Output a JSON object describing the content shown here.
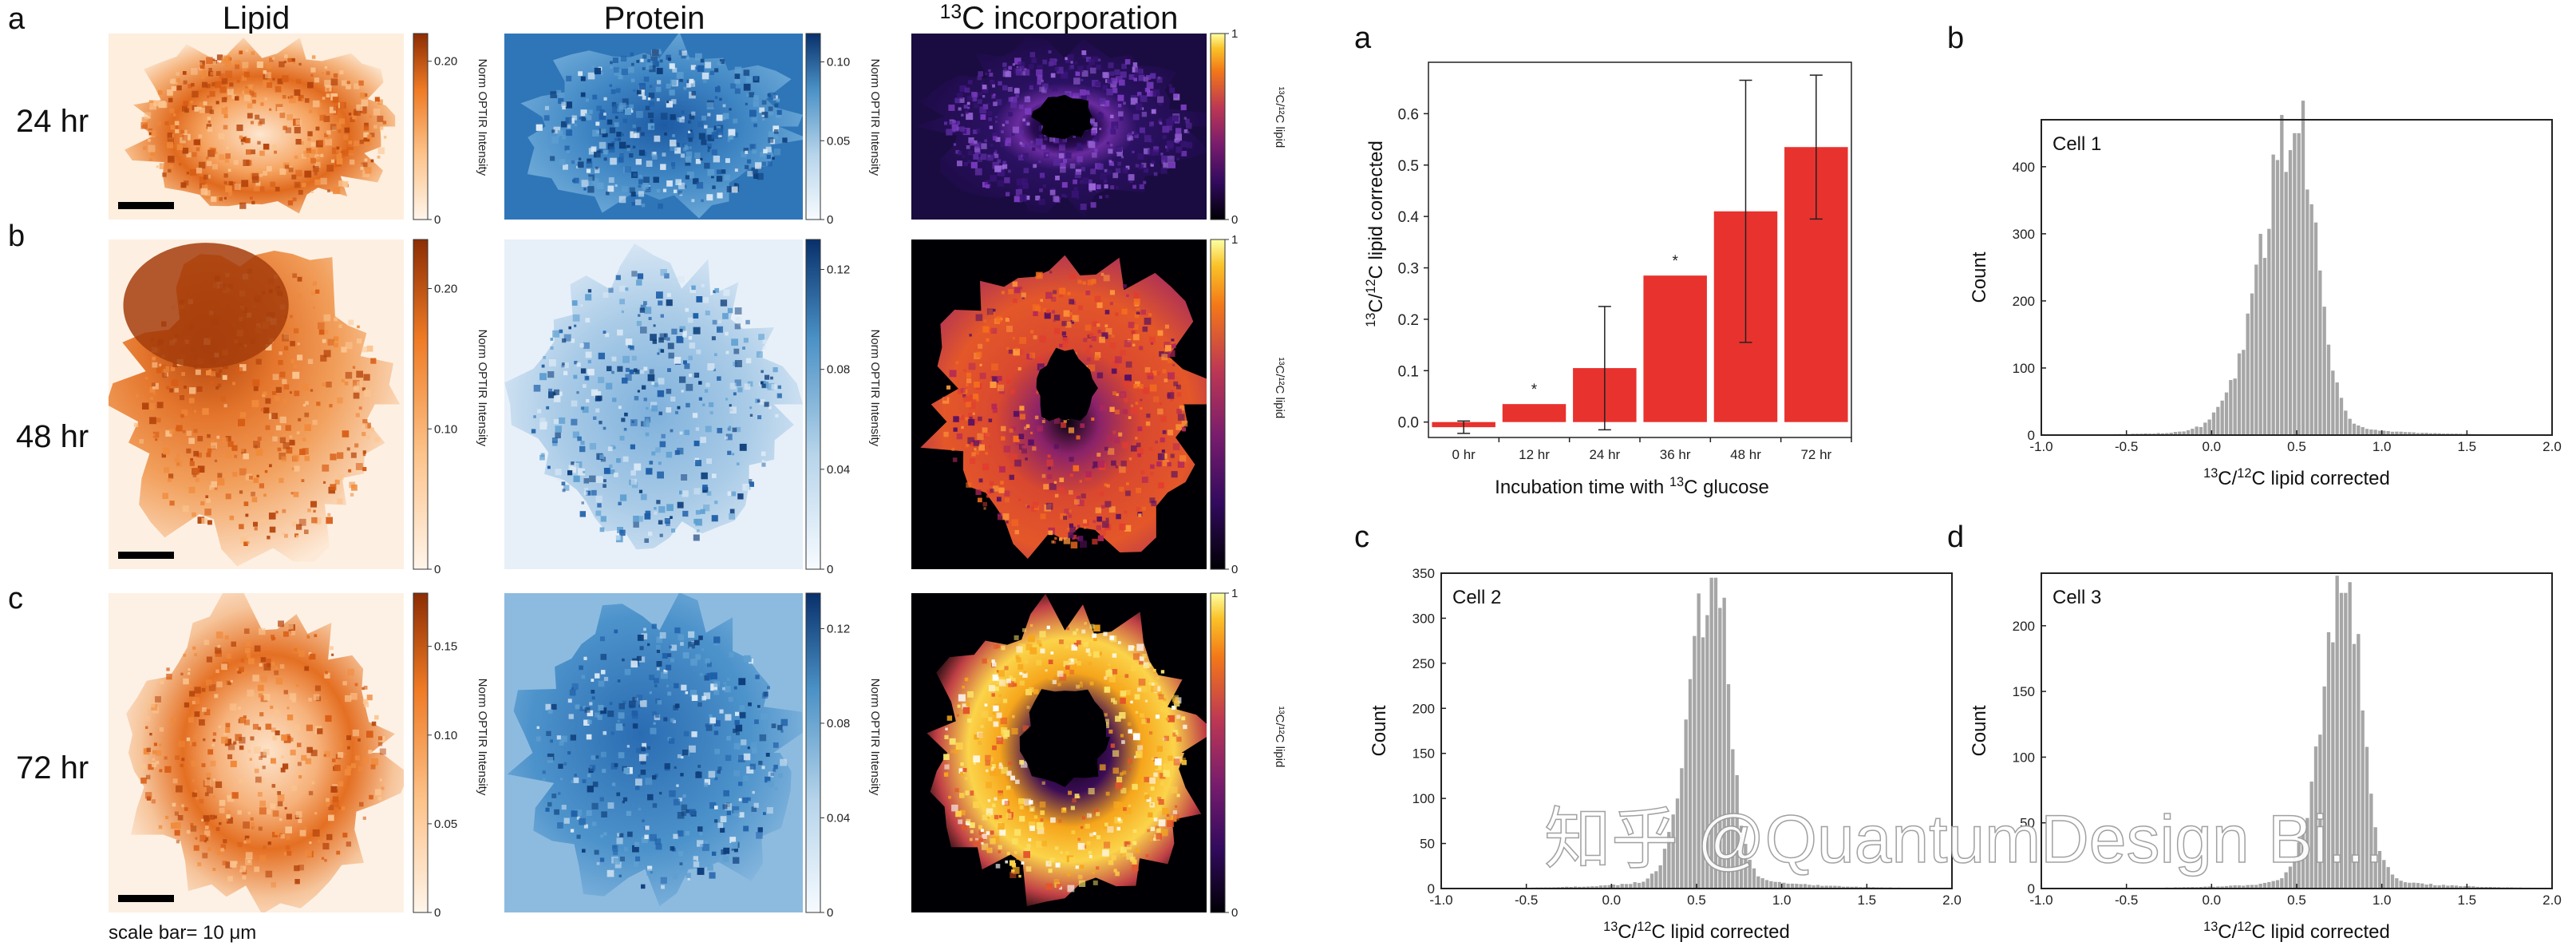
{
  "figure_left": {
    "column_titles": {
      "lipid": "Lipid",
      "protein": "Protein",
      "c13_prefix": "13",
      "c13_text": "C incorporation"
    },
    "panel_letters": [
      "a",
      "b",
      "c"
    ],
    "row_labels": [
      "24 hr",
      "48 hr",
      "72 hr"
    ],
    "scale_bar_prefix": "scale bar= 10 ",
    "scale_bar_unit": "μm",
    "colorbar_label_optir": "Norm OPTIR Intensity",
    "colorbar_label_c13": "¹³C/¹²C lipid",
    "colorbars": {
      "row0": {
        "lipid": {
          "ticks": [
            {
              "v": 0,
              "t": "0"
            },
            {
              "v": 0.2,
              "t": "0.20"
            }
          ],
          "max": 0.235,
          "color": "#c84b0f"
        },
        "protein": {
          "ticks": [
            {
              "v": 0,
              "t": "0"
            },
            {
              "v": 0.05,
              "t": "0.05"
            },
            {
              "v": 0.1,
              "t": "0.10"
            }
          ],
          "max": 0.118,
          "color": "#1f5fa8"
        },
        "c13": {
          "ticks": [
            {
              "v": 0,
              "t": "0"
            },
            {
              "v": 1,
              "t": "1"
            }
          ],
          "max": 1
        }
      },
      "row1": {
        "lipid": {
          "ticks": [
            {
              "v": 0,
              "t": "0"
            },
            {
              "v": 0.1,
              "t": "0.10"
            },
            {
              "v": 0.2,
              "t": "0.20"
            }
          ],
          "max": 0.235,
          "color": "#a83b0a"
        },
        "protein": {
          "ticks": [
            {
              "v": 0,
              "t": "0"
            },
            {
              "v": 0.04,
              "t": "0.04"
            },
            {
              "v": 0.08,
              "t": "0.08"
            },
            {
              "v": 0.12,
              "t": "0.12"
            }
          ],
          "max": 0.132,
          "color": "#2060a8"
        },
        "c13": {
          "ticks": [
            {
              "v": 0,
              "t": "0"
            },
            {
              "v": 1,
              "t": "1"
            }
          ],
          "max": 1
        }
      },
      "row2": {
        "lipid": {
          "ticks": [
            {
              "v": 0,
              "t": "0"
            },
            {
              "v": 0.05,
              "t": "0.05"
            },
            {
              "v": 0.1,
              "t": "0.10"
            },
            {
              "v": 0.15,
              "t": "0.15"
            }
          ],
          "max": 0.18,
          "color": "#c0460e"
        },
        "protein": {
          "ticks": [
            {
              "v": 0,
              "t": "0"
            },
            {
              "v": 0.04,
              "t": "0.04"
            },
            {
              "v": 0.08,
              "t": "0.08"
            },
            {
              "v": 0.12,
              "t": "0.12"
            }
          ],
          "max": 0.135,
          "color": "#1f5fa8"
        },
        "c13": {
          "ticks": [
            {
              "v": 0,
              "t": "0"
            },
            {
              "v": 1,
              "t": "1"
            }
          ],
          "max": 1
        }
      }
    }
  },
  "chart_data": [
    {
      "id": "bar",
      "panel_letter": "a",
      "type": "bar",
      "categories": [
        "0 hr",
        "12 hr",
        "24 hr",
        "36 hr",
        "48 hr",
        "72 hr"
      ],
      "values": [
        -0.01,
        0.035,
        0.105,
        0.285,
        0.41,
        0.535
      ],
      "errors": [
        0.012,
        0.0,
        0.12,
        0.0,
        0.255,
        0.14
      ],
      "significance": [
        "",
        "*",
        "",
        "*",
        "",
        ""
      ],
      "xlabel_prefix": "Incubation time with ",
      "xlabel_sup": "13",
      "xlabel_suffix": "C glucose",
      "ylabel_sup1": "13",
      "ylabel_mid": "C/",
      "ylabel_sup2": "12",
      "ylabel_suffix": "C lipid corrected",
      "ylim": [
        -0.03,
        0.7
      ],
      "yticks": [
        0.0,
        0.1,
        0.2,
        0.3,
        0.4,
        0.5,
        0.6
      ],
      "ytick_labels": [
        "0.0",
        "0.1",
        "0.2",
        "0.3",
        "0.4",
        "0.5",
        "0.6"
      ],
      "bar_color": "#e8322e"
    },
    {
      "id": "hist1",
      "panel_letter": "b",
      "type": "bar",
      "subtype": "histogram",
      "title": "Cell 1",
      "xlim": [
        -1.0,
        2.0
      ],
      "ylim": [
        0,
        470
      ],
      "peak_x": 0.5,
      "peak_height": 450,
      "spread_left": 0.2,
      "spread_right": 0.12,
      "xticks": [
        -1.0,
        -0.5,
        0.0,
        0.5,
        1.0,
        1.5,
        2.0
      ],
      "xtick_labels": [
        "-1.0",
        "-0.5",
        "0.0",
        "0.5",
        "1.0",
        "1.5",
        "2.0"
      ],
      "yticks": [
        0,
        100,
        200,
        300,
        400
      ],
      "ytick_labels": [
        "0",
        "100",
        "200",
        "300",
        "400"
      ],
      "xlabel_sup1": "13",
      "xlabel_mid": "C/",
      "xlabel_sup2": "12",
      "xlabel_suffix": "C lipid corrected",
      "ylabel": "Count"
    },
    {
      "id": "hist2",
      "panel_letter": "c",
      "type": "bar",
      "subtype": "histogram",
      "title": "Cell 2",
      "xlim": [
        -1.0,
        2.0
      ],
      "ylim": [
        0,
        350
      ],
      "peak_x": 0.6,
      "peak_height": 345,
      "spread_left": 0.13,
      "spread_right": 0.09,
      "xticks": [
        -1.0,
        -0.5,
        0.0,
        0.5,
        1.0,
        1.5,
        2.0
      ],
      "xtick_labels": [
        "-1.0",
        "-0.5",
        "0.0",
        "0.5",
        "1.0",
        "1.5",
        "2.0"
      ],
      "yticks": [
        0,
        50,
        100,
        150,
        200,
        250,
        300,
        350
      ],
      "ytick_labels": [
        "0",
        "50",
        "100",
        "150",
        "200",
        "250",
        "300",
        "350"
      ],
      "xlabel_sup1": "13",
      "xlabel_mid": "C/",
      "xlabel_sup2": "12",
      "xlabel_suffix": "C lipid corrected",
      "ylabel": "Count"
    },
    {
      "id": "hist3",
      "panel_letter": "d",
      "type": "bar",
      "subtype": "histogram",
      "title": "Cell 3",
      "xlim": [
        -1.0,
        2.0
      ],
      "ylim": [
        0,
        240
      ],
      "peak_x": 0.78,
      "peak_height": 225,
      "spread_left": 0.13,
      "spread_right": 0.1,
      "xticks": [
        -1.0,
        -0.5,
        0.0,
        0.5,
        1.0,
        1.5,
        2.0
      ],
      "xtick_labels": [
        "-1.0",
        "-0.5",
        "0.0",
        "0.5",
        "1.0",
        "1.5",
        "2.0"
      ],
      "yticks": [
        0,
        50,
        100,
        150,
        200
      ],
      "ytick_labels": [
        "0",
        "50",
        "100",
        "150",
        "200"
      ],
      "xlabel_sup1": "13",
      "xlabel_mid": "C/",
      "xlabel_sup2": "12",
      "xlabel_suffix": "C lipid corrected",
      "ylabel": "Count"
    }
  ],
  "watermark": "知乎 @QuantumDesign Bi..."
}
